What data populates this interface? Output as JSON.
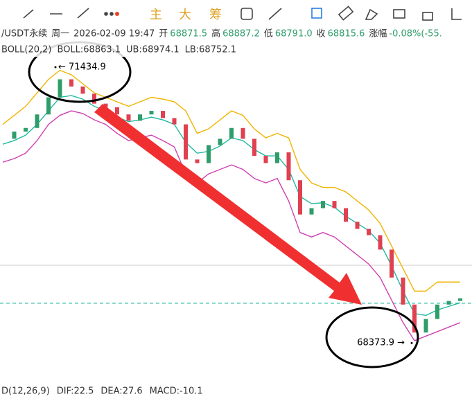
{
  "toolbar": {
    "main": "主",
    "big": "大",
    "chips": "筹"
  },
  "header": {
    "symbol": "/USDT永续",
    "weekday": "周一",
    "datetime": "2026-02-09 19:47",
    "open_label": "开",
    "open": "68871.5",
    "high_label": "高",
    "high": "68887.2",
    "low_label": "低",
    "low": "68791.0",
    "close_label": "收",
    "close": 68815.6,
    "change_label": "涨幅",
    "change": "-0.08%(-55."
  },
  "boll": {
    "name": "BOLL(20,2)",
    "mid": "BOLL:68863.1",
    "ub": "UB:68974.1",
    "lb": "LB:68752.1"
  },
  "macd": {
    "name": "D(12,26,9)",
    "dif": "DIF:22.5",
    "dea": "DEA:27.6",
    "macd": "MACD:-10.1"
  },
  "chart_data": {
    "type": "candlestick",
    "ylim": [
      67730,
      72180
    ],
    "close": [
      70640,
      70720,
      70760,
      70910,
      71100,
      71300,
      71220,
      71140,
      71030,
      70990,
      70910,
      70840,
      70910,
      70950,
      70870,
      70800,
      70410,
      70370,
      70570,
      70640,
      70760,
      70640,
      70450,
      70370,
      70490,
      70180,
      69800,
      69870,
      69950,
      69870,
      69720,
      69640,
      69570,
      69410,
      69100,
      68800,
      68490,
      68640,
      68800,
      68840,
      68870
    ],
    "series": [
      {
        "name": "UB",
        "color": "#f0b400",
        "values": [
          70800,
          70900,
          71000,
          71150,
          71300,
          71400,
          71350,
          71250,
          71150,
          71100,
          71050,
          71000,
          71050,
          71100,
          71080,
          71050,
          70950,
          70700,
          70750,
          70850,
          70950,
          70900,
          70750,
          70650,
          70700,
          70650,
          70300,
          70150,
          70100,
          70100,
          70050,
          69950,
          69850,
          69700,
          69450,
          69200,
          68950,
          68950,
          69050,
          69050,
          69050
        ]
      },
      {
        "name": "BOLL",
        "color": "#20b8a0",
        "values": [
          70580,
          70620,
          70680,
          70800,
          70950,
          71100,
          71120,
          71080,
          71000,
          70950,
          70880,
          70830,
          70850,
          70880,
          70850,
          70800,
          70600,
          70480,
          70500,
          70560,
          70650,
          70620,
          70520,
          70450,
          70450,
          70300,
          70000,
          69920,
          69930,
          69880,
          69780,
          69700,
          69620,
          69480,
          69230,
          68950,
          68700,
          68680,
          68740,
          68780,
          68820
        ]
      },
      {
        "name": "LB",
        "color": "#d040b0",
        "values": [
          70380,
          70420,
          70480,
          70620,
          70800,
          70900,
          70950,
          70920,
          70850,
          70800,
          70700,
          70620,
          70650,
          70680,
          70620,
          70550,
          70250,
          70150,
          70250,
          70300,
          70350,
          70300,
          70200,
          70150,
          70200,
          69950,
          69600,
          69550,
          69600,
          69550,
          69450,
          69350,
          69250,
          69100,
          68850,
          68600,
          68400,
          68450,
          68500,
          68550,
          68600
        ]
      }
    ],
    "max_mark": {
      "value": 71434.9,
      "label": "← 71434.9"
    },
    "min_mark": {
      "value": 68373.9,
      "label": "68373.9 →"
    }
  }
}
